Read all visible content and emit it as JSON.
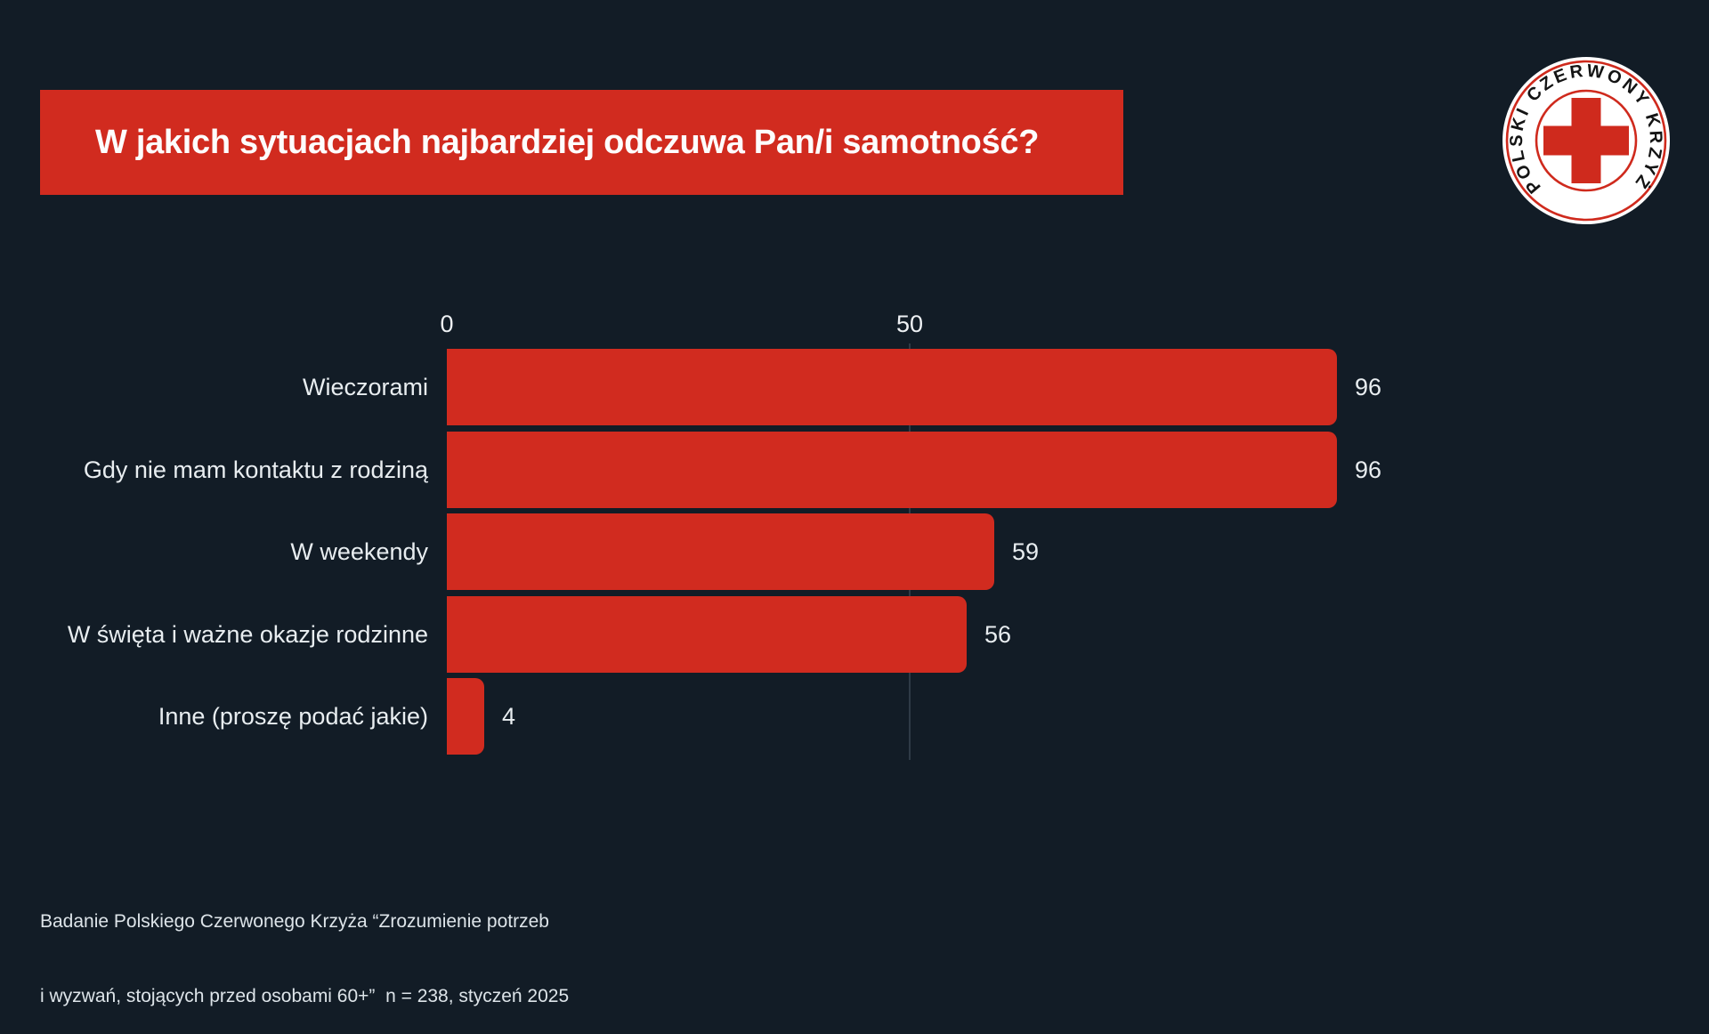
{
  "page": {
    "background": "#121c26",
    "accent_red": "#d12b1f"
  },
  "header": {
    "title": "W jakich sytuacjach najbardziej odczuwa Pan/i samotność?"
  },
  "logo": {
    "ring_text": "POLSKI CZERWONY KRZYŻ",
    "red": "#cf2a1d",
    "disc_color": "#ffffff",
    "text_color": "#141414"
  },
  "chart_data": {
    "type": "bar",
    "orientation": "horizontal",
    "title": "W jakich sytuacjach najbardziej odczuwa Pan/i samotność?",
    "categories": [
      "Wieczorami",
      "Gdy nie mam kontaktu z rodziną",
      "W weekendy",
      "W święta i ważne okazje rodzinne",
      "Inne (proszę podać jakie)"
    ],
    "values": [
      96,
      96,
      59,
      56,
      4
    ],
    "x_ticks": [
      "0",
      "50"
    ],
    "xlim": [
      0,
      100
    ],
    "bar_color": "#d12b1f",
    "gridline_at": 50,
    "legend": "none",
    "grid": "single vertical line at x=50"
  },
  "footer": {
    "line1": "Badanie Polskiego Czerwonego Krzyża “Zrozumienie potrzeb",
    "line2": "i wyzwań, stojących przed osobami 60+”  n = 238, styczeń 2025"
  }
}
